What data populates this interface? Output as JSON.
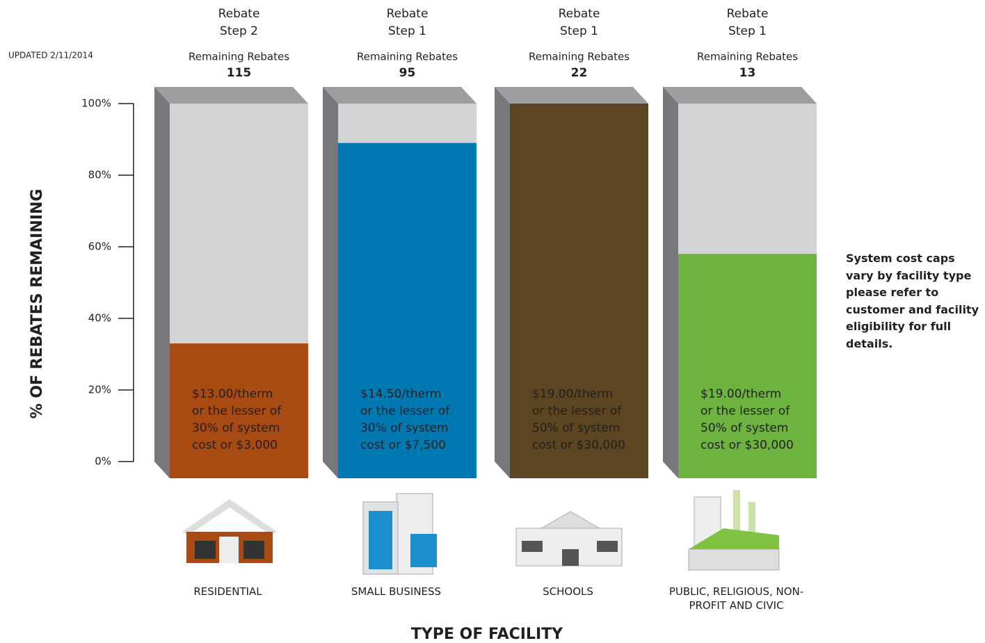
{
  "chart_data": {
    "type": "bar",
    "updated": "UPDATED 2/11/2014",
    "y_axis_label": "% OF REBATES REMAINING",
    "x_axis_label": "TYPE OF FACILITY",
    "note": "System cost caps vary by facility type please refer to customer and facility eligibility for full details.",
    "categories": [
      "RESIDENTIAL",
      "SMALL BUSINESS",
      "SCHOOLS",
      "PUBLIC, RELIGIOUS, NON-PROFIT AND CIVIC"
    ],
    "values": [
      33,
      89,
      100,
      58
    ],
    "colors": [
      "#a84b12",
      "#0078b2",
      "#5b4621",
      "#6cb33f"
    ],
    "rebate_steps": [
      [
        "Rebate",
        "Step 2"
      ],
      [
        "Rebate",
        "Step 1"
      ],
      [
        "Rebate",
        "Step 1"
      ],
      [
        "Rebate",
        "Step 1"
      ]
    ],
    "remaining_label": "Remaining Rebates",
    "remaining_rebates": [
      115,
      95,
      22,
      13
    ],
    "rate_labels": [
      [
        "$13.00/therm",
        "or the lesser of",
        "30% of system",
        "cost or $3,000"
      ],
      [
        "$14.50/therm",
        "or the lesser of",
        "30% of system",
        "cost or $7,500"
      ],
      [
        "$19.00/therm",
        "or the lesser of",
        "50% of system",
        "cost or $30,000"
      ],
      [
        "$19.00/therm",
        "or the lesser of",
        "50% of system",
        "cost or $30,000"
      ]
    ],
    "ylim": [
      0,
      100
    ],
    "yticks": [
      {
        "value": 0,
        "label": "0%"
      },
      {
        "value": 20,
        "label": "20%"
      },
      {
        "value": 40,
        "label": "40%"
      },
      {
        "value": 60,
        "label": "60%"
      },
      {
        "value": 80,
        "label": "80%"
      },
      {
        "value": 100,
        "label": "100%"
      }
    ]
  }
}
